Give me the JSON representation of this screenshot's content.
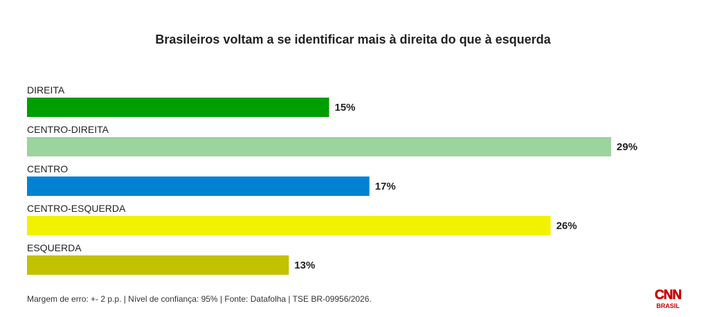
{
  "chart_data": {
    "type": "bar",
    "orientation": "horizontal",
    "title": "Brasileiros voltam a se identificar mais à direita do que à esquerda",
    "categories": [
      "DIREITA",
      "CENTRO-DIREITA",
      "CENTRO",
      "CENTRO-ESQUERDA",
      "ESQUERDA"
    ],
    "values": [
      15,
      29,
      17,
      26,
      13
    ],
    "value_labels": [
      "15%",
      "29%",
      "17%",
      "26%",
      "13%"
    ],
    "colors": [
      "#009e00",
      "#9dd39d",
      "#0082d4",
      "#f2f200",
      "#c2c200"
    ],
    "unit": "%",
    "xlim": [
      0,
      30
    ],
    "grid": false,
    "legend": "none"
  },
  "footer": {
    "note": "Margem de erro: +- 2 p.p. | Nível de confiança: 95% | Fonte: Datafolha | TSE BR-09956/2026."
  },
  "logo": {
    "brand": "CNN",
    "sub": "BRASIL",
    "color": "#cc0000"
  }
}
